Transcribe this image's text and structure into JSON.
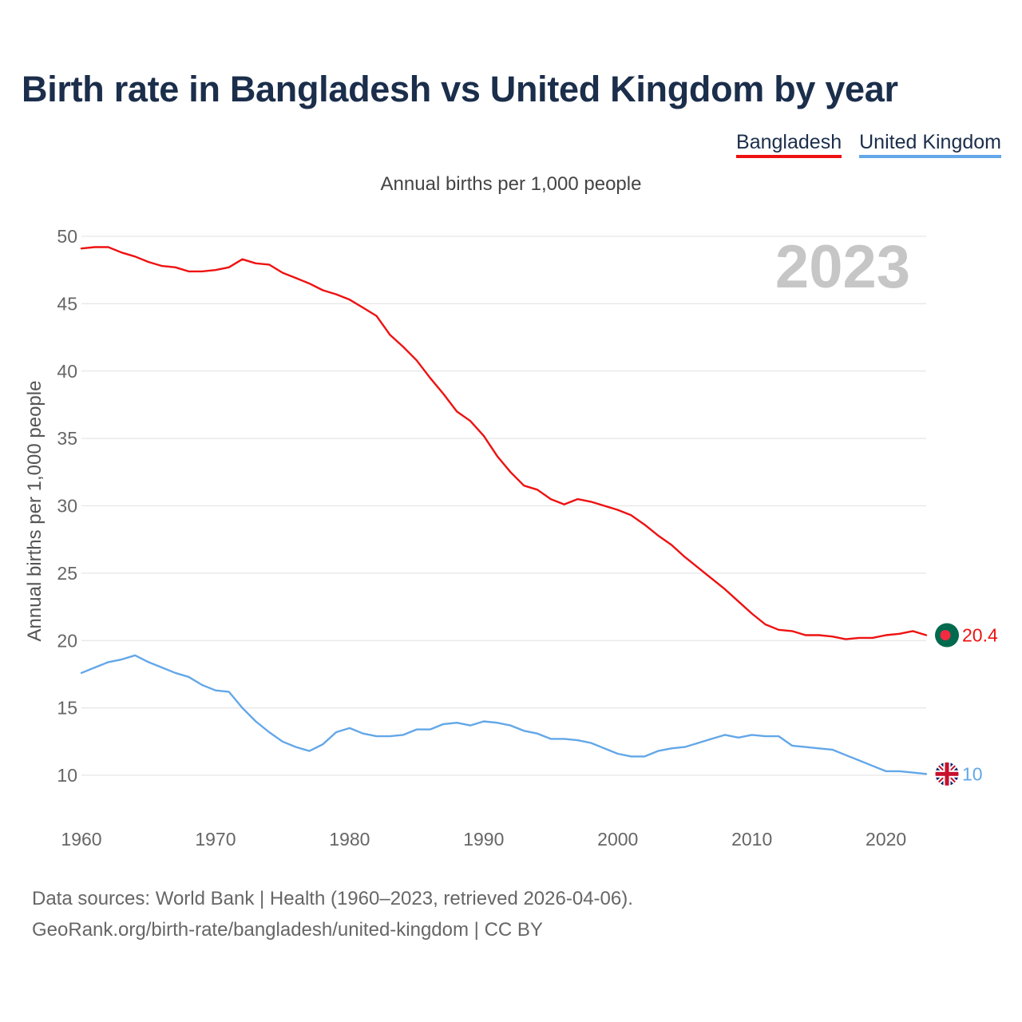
{
  "title": "Birth rate in Bangladesh vs United Kingdom by year",
  "legend": [
    {
      "label": "Bangladesh",
      "color": "#ee1111"
    },
    {
      "label": "United Kingdom",
      "color": "#63a7e8"
    }
  ],
  "subtitle": "Annual births per 1,000 people",
  "chart_data": {
    "type": "line",
    "title": "Birth rate in Bangladesh vs United Kingdom by year",
    "subtitle": "Annual births per 1,000 people",
    "xlabel": "",
    "ylabel": "Annual births per 1,000 people",
    "xlim": [
      1960,
      2023
    ],
    "ylim": [
      10,
      50
    ],
    "x_ticks": [
      1960,
      1970,
      1980,
      1990,
      2000,
      2010,
      2020
    ],
    "y_ticks": [
      10,
      15,
      20,
      25,
      30,
      35,
      40,
      45,
      50
    ],
    "grid": true,
    "year_label": "2023",
    "x": [
      1960,
      1961,
      1962,
      1963,
      1964,
      1965,
      1966,
      1967,
      1968,
      1969,
      1970,
      1971,
      1972,
      1973,
      1974,
      1975,
      1976,
      1977,
      1978,
      1979,
      1980,
      1981,
      1982,
      1983,
      1984,
      1985,
      1986,
      1987,
      1988,
      1989,
      1990,
      1991,
      1992,
      1993,
      1994,
      1995,
      1996,
      1997,
      1998,
      1999,
      2000,
      2001,
      2002,
      2003,
      2004,
      2005,
      2006,
      2007,
      2008,
      2009,
      2010,
      2011,
      2012,
      2013,
      2014,
      2015,
      2016,
      2017,
      2018,
      2019,
      2020,
      2021,
      2022,
      2023
    ],
    "series": [
      {
        "name": "Bangladesh",
        "color": "#ee1111",
        "end_label": "20.4",
        "flag": "bangladesh-flag",
        "values": [
          49.1,
          49.2,
          49.2,
          48.8,
          48.5,
          48.1,
          47.8,
          47.7,
          47.4,
          47.4,
          47.5,
          47.7,
          48.3,
          48.0,
          47.9,
          47.3,
          46.9,
          46.5,
          46.0,
          45.7,
          45.3,
          44.7,
          44.1,
          42.7,
          41.8,
          40.8,
          39.5,
          38.3,
          37.0,
          36.3,
          35.2,
          33.7,
          32.5,
          31.5,
          31.2,
          30.5,
          30.1,
          30.5,
          30.3,
          30.0,
          29.7,
          29.3,
          28.6,
          27.8,
          27.1,
          26.2,
          25.4,
          24.6,
          23.8,
          22.9,
          22.0,
          21.2,
          20.8,
          20.7,
          20.4,
          20.4,
          20.3,
          20.1,
          20.2,
          20.2,
          20.4,
          20.5,
          20.7,
          20.4
        ]
      },
      {
        "name": "United Kingdom",
        "color": "#63a7e8",
        "end_label": "10",
        "flag": "united-kingdom-flag",
        "values": [
          17.6,
          18.0,
          18.4,
          18.6,
          18.9,
          18.4,
          18.0,
          17.6,
          17.3,
          16.7,
          16.3,
          16.2,
          15.0,
          14.0,
          13.2,
          12.5,
          12.1,
          11.8,
          12.3,
          13.2,
          13.5,
          13.1,
          12.9,
          12.9,
          13.0,
          13.4,
          13.4,
          13.8,
          13.9,
          13.7,
          14.0,
          13.9,
          13.7,
          13.3,
          13.1,
          12.7,
          12.7,
          12.6,
          12.4,
          12.0,
          11.6,
          11.4,
          11.4,
          11.8,
          12.0,
          12.1,
          12.4,
          12.7,
          13.0,
          12.8,
          13.0,
          12.9,
          12.9,
          12.2,
          12.1,
          12.0,
          11.9,
          11.5,
          11.1,
          10.7,
          10.3,
          10.3,
          10.2,
          10.1
        ]
      }
    ]
  },
  "footer": {
    "line1": "Data sources: World Bank | Health (1960–2023, retrieved 2026-04-06).",
    "line2": "GeoRank.org/birth-rate/bangladesh/united-kingdom | CC BY"
  }
}
